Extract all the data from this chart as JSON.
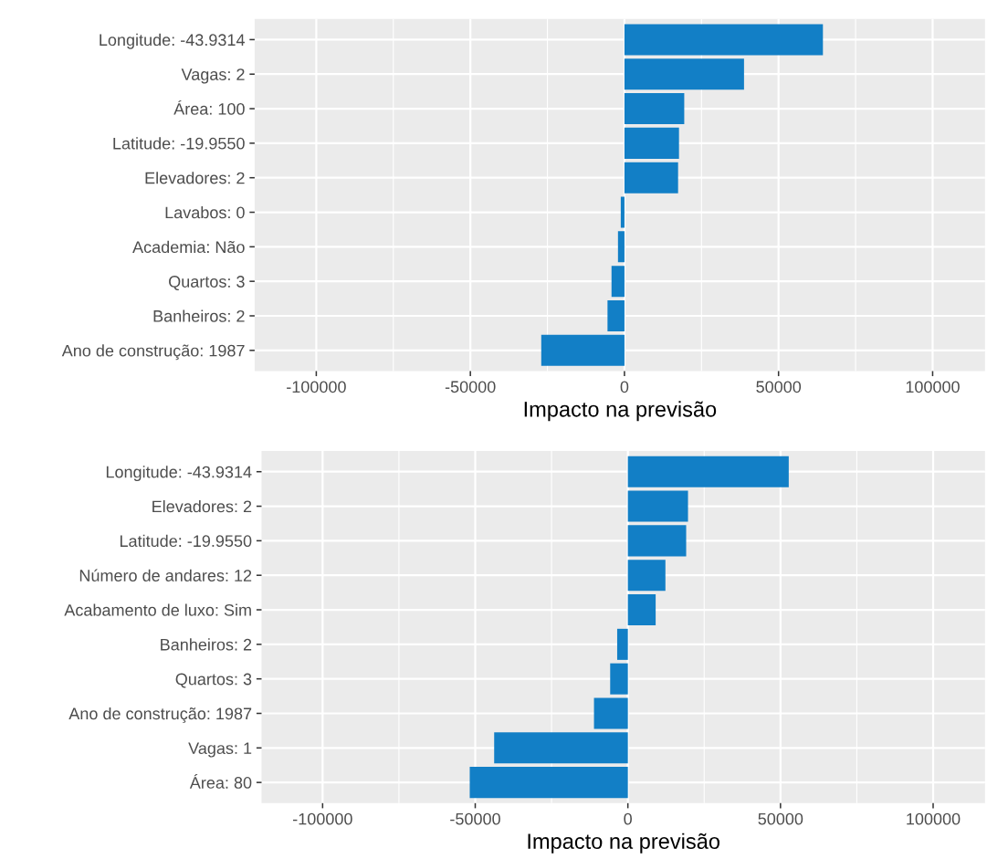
{
  "chart_data": [
    {
      "type": "bar",
      "orientation": "horizontal",
      "xlabel": "Impacto na previsão",
      "color": "#127fc6",
      "grid": true,
      "categories": [
        "Longitude: -43.9314",
        "Vagas: 2",
        "Área: 100",
        "Latitude: -19.9550",
        "Elevadores: 2",
        "Lavabos: 0",
        "Academia: Não",
        "Quartos: 3",
        "Banheiros: 2",
        "Ano de construção: 1987"
      ],
      "values": [
        64400,
        38800,
        19400,
        17700,
        17400,
        -1200,
        -2100,
        -4200,
        -5500,
        -27000
      ],
      "xlim": [
        -120000,
        117000
      ],
      "xticks": [
        -100000,
        -50000,
        0,
        50000,
        100000
      ]
    },
    {
      "type": "bar",
      "orientation": "horizontal",
      "xlabel": "Impacto na previsão",
      "color": "#127fc6",
      "grid": true,
      "categories": [
        "Longitude: -43.9314",
        "Elevadores: 2",
        "Latitude: -19.9550",
        "Número de andares: 12",
        "Acabamento de luxo: Sim",
        "Banheiros: 2",
        "Quartos: 3",
        "Ano de construção: 1987",
        "Vagas: 1",
        "Área: 80"
      ],
      "values": [
        52700,
        19700,
        19100,
        12300,
        9100,
        -3500,
        -5800,
        -11100,
        -43800,
        -51800
      ],
      "xlim": [
        -120000,
        117000
      ],
      "xticks": [
        -100000,
        -50000,
        0,
        50000,
        100000
      ]
    }
  ]
}
